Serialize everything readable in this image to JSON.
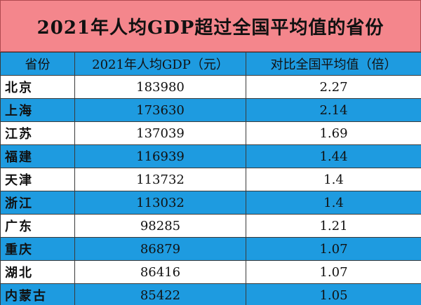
{
  "title": "2021年人均GDP超过全国平均值的省份",
  "headers": {
    "province": "省份",
    "gdp": "2021年人均GDP（元）",
    "ratio": "对比全国平均值（倍）"
  },
  "colors": {
    "title_bg": "#f4868c",
    "stripe": "#1e9be0",
    "white": "#ffffff"
  },
  "rows": [
    {
      "province": "北京",
      "gdp": "183980",
      "ratio": "2.27"
    },
    {
      "province": "上海",
      "gdp": "173630",
      "ratio": "2.14"
    },
    {
      "province": "江苏",
      "gdp": "137039",
      "ratio": "1.69"
    },
    {
      "province": "福建",
      "gdp": "116939",
      "ratio": "1.44"
    },
    {
      "province": "天津",
      "gdp": "113732",
      "ratio": "1.4"
    },
    {
      "province": "浙江",
      "gdp": "113032",
      "ratio": "1.4"
    },
    {
      "province": "广东",
      "gdp": "98285",
      "ratio": "1.21"
    },
    {
      "province": "重庆",
      "gdp": "86879",
      "ratio": "1.07"
    },
    {
      "province": "湖北",
      "gdp": "86416",
      "ratio": "1.07"
    },
    {
      "province": "内蒙古",
      "gdp": "85422",
      "ratio": "1.05"
    }
  ]
}
